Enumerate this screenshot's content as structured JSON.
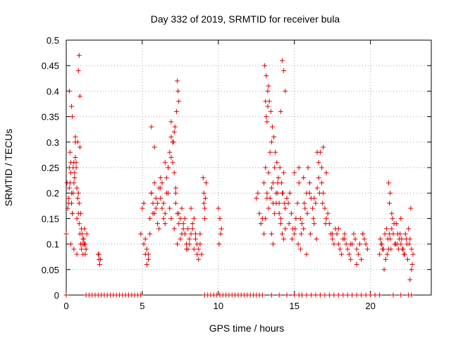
{
  "chart_data": {
    "type": "scatter",
    "title": "Day 332 of 2019, SRMTID for receiver bula",
    "xlabel": "GPS time / hours",
    "ylabel": "SRMTID / TECUs",
    "xlim": [
      0,
      24
    ],
    "ylim": [
      0,
      0.5
    ],
    "xticks": [
      0,
      5,
      10,
      15,
      20
    ],
    "xtick_labels": [
      "0",
      "5",
      "10",
      "15",
      "20"
    ],
    "yticks": [
      0,
      0.05,
      0.1,
      0.15,
      0.2,
      0.25,
      0.3,
      0.35,
      0.4,
      0.45,
      0.5
    ],
    "ytick_labels": [
      "0",
      "0.05",
      "0.1",
      "0.15",
      "0.2",
      "0.25",
      "0.3",
      "0.35",
      "0.4",
      "0.45",
      "0.5"
    ],
    "grid": true,
    "marker": "+",
    "series": [
      {
        "name": "SRMTID",
        "color": "#e00000",
        "x": [
          0.0,
          0.05,
          0.1,
          0.15,
          0.2,
          0.25,
          0.3,
          0.35,
          0.4,
          0.45,
          0.5,
          0.55,
          0.6,
          0.65,
          0.7,
          0.75,
          0.8,
          0.85,
          0.9,
          0.95,
          1.0,
          1.05,
          1.1,
          1.15,
          1.2,
          1.25,
          1.3,
          1.35,
          0.2,
          0.3,
          0.4,
          0.5,
          0.6,
          0.7,
          0.8,
          0.9,
          1.0,
          1.1,
          1.2,
          1.3,
          0.15,
          0.35,
          0.55,
          0.75,
          0.95,
          1.15,
          0.25,
          0.45,
          0.65,
          0.85,
          1.05,
          1.25,
          0.2,
          0.35,
          0.8,
          0.85,
          0.4,
          0.6,
          0.9,
          0.3,
          0.5,
          0.7,
          2.1,
          2.15,
          2.2,
          2.25,
          2.15,
          2.2,
          4.9,
          5.0,
          5.1,
          5.2,
          5.3,
          5.4,
          5.5,
          5.6,
          5.7,
          5.8,
          5.9,
          6.0,
          6.1,
          6.2,
          6.3,
          6.4,
          6.5,
          6.6,
          6.7,
          6.8,
          6.9,
          7.0,
          7.1,
          7.2,
          7.3,
          7.4,
          7.5,
          7.6,
          7.7,
          7.8,
          7.9,
          8.0,
          8.1,
          8.2,
          8.3,
          8.4,
          8.5,
          8.6,
          8.7,
          8.8,
          8.9,
          5.1,
          5.3,
          5.5,
          5.7,
          5.9,
          6.1,
          6.3,
          6.5,
          6.7,
          6.9,
          7.1,
          7.3,
          7.5,
          7.7,
          7.9,
          8.1,
          8.3,
          8.5,
          8.7,
          5.2,
          5.4,
          5.6,
          5.8,
          6.0,
          6.2,
          6.4,
          6.6,
          6.8,
          7.0,
          7.2,
          7.4,
          7.6,
          7.8,
          8.0,
          8.2,
          8.4,
          8.6,
          8.8,
          5.6,
          5.8,
          6.2,
          6.5,
          6.9,
          7.2,
          7.3,
          7.35,
          7.4,
          7.25,
          7.15,
          7.1,
          7.05,
          6.9,
          6.7,
          9.0,
          9.05,
          9.1,
          9.15,
          9.2,
          9.1,
          9.05,
          10.0,
          10.1,
          10.2,
          10.05,
          10.15,
          12.5,
          12.6,
          12.7,
          12.8,
          12.9,
          13.0,
          13.1,
          13.2,
          13.3,
          13.4,
          13.5,
          13.6,
          13.7,
          13.8,
          13.9,
          14.0,
          14.1,
          14.2,
          14.3,
          14.4,
          14.5,
          13.05,
          13.15,
          13.25,
          13.35,
          13.45,
          13.55,
          13.65,
          13.75,
          13.85,
          13.95,
          14.05,
          14.15,
          14.25,
          14.35,
          13.0,
          13.1,
          13.2,
          13.3,
          13.4,
          13.5,
          13.6,
          13.7,
          13.8,
          13.9,
          14.0,
          14.1,
          14.2,
          14.3,
          14.4,
          13.1,
          13.15,
          13.2,
          13.25,
          13.3,
          14.2,
          14.3,
          14.4,
          14.1,
          13.5,
          13.6,
          14.6,
          14.7,
          14.8,
          14.9,
          15.0,
          15.1,
          15.2,
          15.3,
          15.4,
          15.5,
          15.6,
          15.7,
          15.8,
          15.9,
          16.0,
          16.1,
          16.2,
          16.3,
          16.4,
          16.5,
          16.6,
          16.7,
          16.8,
          16.9,
          17.0,
          17.1,
          17.2,
          14.65,
          14.85,
          15.05,
          15.25,
          15.45,
          15.65,
          15.85,
          16.05,
          16.25,
          16.45,
          16.65,
          16.85,
          17.05,
          15.0,
          15.3,
          15.6,
          16.0,
          16.3,
          16.6,
          16.9,
          17.1,
          16.8,
          16.5,
          15.8,
          15.4,
          17.3,
          17.4,
          17.5,
          17.6,
          17.7,
          17.8,
          17.9,
          18.0,
          18.1,
          18.2,
          18.3,
          18.4,
          18.5,
          18.6,
          18.7,
          18.8,
          18.9,
          19.0,
          19.1,
          19.2,
          19.3,
          19.4,
          19.5,
          19.6,
          19.7,
          19.8,
          17.5,
          17.9,
          18.3,
          18.7,
          19.1,
          19.5,
          20.6,
          20.7,
          20.8,
          20.9,
          21.0,
          21.1,
          21.2,
          21.3,
          21.4,
          21.5,
          21.6,
          21.7,
          21.8,
          21.9,
          22.0,
          22.1,
          22.2,
          22.3,
          22.4,
          22.5,
          22.6,
          22.7,
          22.8,
          20.65,
          20.85,
          21.05,
          21.25,
          21.45,
          21.65,
          21.85,
          22.05,
          22.25,
          22.45,
          22.65,
          22.75,
          20.75,
          20.95,
          21.15,
          21.35,
          21.55,
          21.75,
          21.95,
          22.15,
          22.35,
          22.55,
          21.2,
          21.3,
          21.25,
          21.4,
          22.0,
          22.6,
          22.7,
          0.0,
          1.3,
          1.5,
          1.7,
          1.9,
          2.1,
          2.3,
          2.5,
          2.7,
          2.9,
          3.1,
          3.3,
          3.5,
          3.7,
          3.9,
          4.1,
          4.3,
          4.5,
          4.7,
          4.9,
          9.1,
          9.3,
          9.5,
          9.7,
          9.9,
          10.1,
          10.3,
          10.5,
          10.7,
          10.9,
          11.1,
          11.3,
          11.5,
          11.7,
          11.9,
          12.1,
          12.3,
          12.5,
          12.7,
          12.9,
          13.5,
          14.0,
          14.5,
          15.0,
          15.3,
          15.5,
          15.8,
          16.1,
          16.4,
          16.7,
          17.0,
          17.3,
          17.6,
          17.9,
          18.2,
          18.5,
          18.8,
          19.1,
          19.4,
          19.7,
          20.0,
          20.3,
          20.6,
          21.5,
          22.0,
          22.5,
          22.7
        ],
        "y": [
          0.12,
          0.22,
          0.17,
          0.19,
          0.25,
          0.28,
          0.24,
          0.18,
          0.16,
          0.2,
          0.26,
          0.23,
          0.3,
          0.25,
          0.21,
          0.19,
          0.16,
          0.14,
          0.12,
          0.1,
          0.09,
          0.1,
          0.08,
          0.11,
          0.13,
          0.1,
          0.09,
          0.12,
          0.21,
          0.26,
          0.16,
          0.22,
          0.27,
          0.15,
          0.2,
          0.29,
          0.13,
          0.11,
          0.1,
          0.09,
          0.18,
          0.2,
          0.24,
          0.3,
          0.16,
          0.1,
          0.22,
          0.25,
          0.26,
          0.18,
          0.12,
          0.08,
          0.4,
          0.37,
          0.44,
          0.47,
          0.35,
          0.31,
          0.39,
          0.1,
          0.09,
          0.08,
          0.08,
          0.07,
          0.06,
          0.07,
          0.08,
          0.06,
          0.12,
          0.17,
          0.1,
          0.08,
          0.09,
          0.07,
          0.15,
          0.2,
          0.18,
          0.16,
          0.17,
          0.14,
          0.21,
          0.19,
          0.22,
          0.18,
          0.16,
          0.2,
          0.25,
          0.28,
          0.34,
          0.3,
          0.24,
          0.18,
          0.16,
          0.14,
          0.15,
          0.17,
          0.13,
          0.12,
          0.1,
          0.09,
          0.11,
          0.12,
          0.14,
          0.15,
          0.11,
          0.1,
          0.09,
          0.12,
          0.08,
          0.18,
          0.06,
          0.12,
          0.16,
          0.19,
          0.13,
          0.17,
          0.14,
          0.2,
          0.15,
          0.13,
          0.1,
          0.11,
          0.14,
          0.09,
          0.1,
          0.13,
          0.12,
          0.07,
          0.11,
          0.08,
          0.2,
          0.22,
          0.18,
          0.21,
          0.15,
          0.23,
          0.17,
          0.26,
          0.2,
          0.16,
          0.12,
          0.15,
          0.13,
          0.17,
          0.09,
          0.08,
          0.1,
          0.33,
          0.29,
          0.23,
          0.26,
          0.31,
          0.21,
          0.42,
          0.4,
          0.38,
          0.36,
          0.33,
          0.32,
          0.3,
          0.27,
          0.25,
          0.23,
          0.2,
          0.17,
          0.19,
          0.22,
          0.15,
          0.18,
          0.17,
          0.15,
          0.13,
          0.1,
          0.12,
          0.19,
          0.2,
          0.16,
          0.14,
          0.15,
          0.22,
          0.25,
          0.2,
          0.17,
          0.19,
          0.21,
          0.18,
          0.16,
          0.2,
          0.22,
          0.18,
          0.15,
          0.2,
          0.24,
          0.17,
          0.19,
          0.45,
          0.43,
          0.4,
          0.38,
          0.36,
          0.33,
          0.31,
          0.28,
          0.26,
          0.23,
          0.25,
          0.22,
          0.2,
          0.18,
          0.12,
          0.15,
          0.19,
          0.24,
          0.28,
          0.3,
          0.22,
          0.25,
          0.18,
          0.2,
          0.16,
          0.14,
          0.12,
          0.11,
          0.13,
          0.38,
          0.35,
          0.34,
          0.37,
          0.41,
          0.46,
          0.44,
          0.4,
          0.36,
          0.12,
          0.1,
          0.18,
          0.2,
          0.16,
          0.13,
          0.12,
          0.15,
          0.18,
          0.22,
          0.15,
          0.14,
          0.13,
          0.17,
          0.2,
          0.25,
          0.22,
          0.19,
          0.17,
          0.14,
          0.18,
          0.21,
          0.23,
          0.28,
          0.25,
          0.2,
          0.17,
          0.15,
          0.16,
          0.14,
          0.11,
          0.13,
          0.1,
          0.12,
          0.18,
          0.16,
          0.12,
          0.15,
          0.11,
          0.2,
          0.18,
          0.14,
          0.24,
          0.25,
          0.23,
          0.2,
          0.19,
          0.26,
          0.29,
          0.24,
          0.22,
          0.28,
          0.08,
          0.09,
          0.14,
          0.12,
          0.11,
          0.1,
          0.13,
          0.12,
          0.1,
          0.09,
          0.08,
          0.11,
          0.12,
          0.1,
          0.09,
          0.08,
          0.07,
          0.1,
          0.12,
          0.11,
          0.09,
          0.08,
          0.1,
          0.07,
          0.12,
          0.11,
          0.1,
          0.09,
          0.12,
          0.13,
          0.11,
          0.1,
          0.06,
          0.12,
          0.08,
          0.1,
          0.09,
          0.05,
          0.07,
          0.08,
          0.09,
          0.11,
          0.13,
          0.12,
          0.1,
          0.14,
          0.12,
          0.11,
          0.1,
          0.09,
          0.08,
          0.12,
          0.1,
          0.13,
          0.11,
          0.09,
          0.08,
          0.11,
          0.09,
          0.13,
          0.12,
          0.15,
          0.1,
          0.09,
          0.11,
          0.08,
          0.07,
          0.17,
          0.06,
          0.1,
          0.12,
          0.11,
          0.09,
          0.14,
          0.1,
          0.12,
          0.09,
          0.11,
          0.1,
          0.22,
          0.2,
          0.18,
          0.16,
          0.15,
          0.03,
          0.05,
          0,
          0,
          0,
          0,
          0,
          0,
          0,
          0,
          0,
          0,
          0,
          0,
          0,
          0,
          0,
          0,
          0,
          0,
          0,
          0,
          0,
          0,
          0,
          0,
          0,
          0,
          0,
          0,
          0,
          0,
          0,
          0,
          0,
          0,
          0,
          0,
          0,
          0,
          0,
          0,
          0,
          0,
          0,
          0,
          0,
          0,
          0,
          0,
          0,
          0,
          0,
          0,
          0,
          0,
          0,
          0,
          0,
          0,
          0,
          0,
          0,
          0,
          0,
          0,
          0,
          0,
          0
        ]
      }
    ]
  }
}
